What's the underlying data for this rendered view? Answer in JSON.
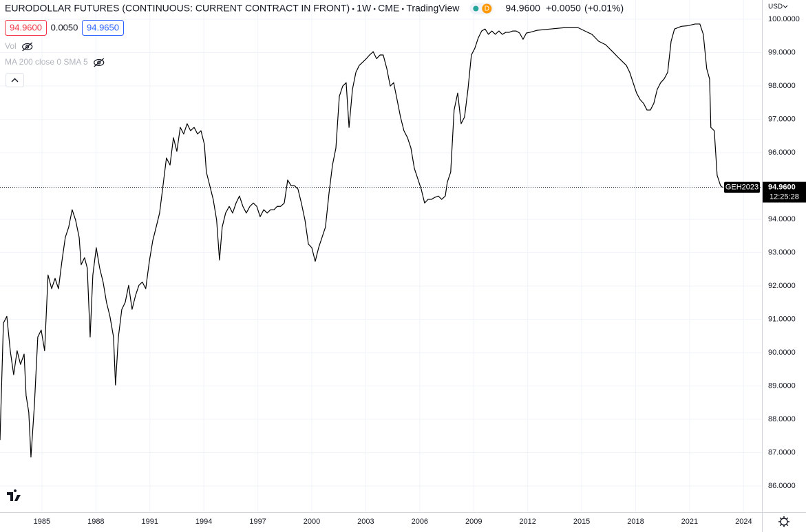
{
  "toolbar": {
    "title": "EURODOLLAR FUTURES (CONTINUOUS: CURRENT CONTRACT IN FRONT)",
    "interval": "1W",
    "exchange": "CME",
    "source": "TradingView",
    "badge": "D",
    "last": "94.9600",
    "change": "+0.0050",
    "change_pct": "(+0.01%)",
    "sell": "94.9600",
    "spread": "0.0050",
    "buy": "94.9650",
    "indicators": [
      "Vol",
      "MA 200 close 0 SMA 5"
    ],
    "currency": "USD"
  },
  "chart_data": {
    "type": "line",
    "color": "#000000",
    "x": [
      1982.67,
      1982.86,
      1983.05,
      1983.24,
      1983.43,
      1983.62,
      1983.81,
      1984.01,
      1984.12,
      1984.27,
      1984.39,
      1984.58,
      1984.77,
      1984.96,
      1985.15,
      1985.34,
      1985.54,
      1985.73,
      1985.92,
      1986.11,
      1986.3,
      1986.49,
      1986.68,
      1986.87,
      1987.07,
      1987.18,
      1987.37,
      1987.52,
      1987.68,
      1987.83,
      1988.02,
      1988.21,
      1988.4,
      1988.59,
      1988.78,
      1988.98,
      1989.09,
      1989.25,
      1989.44,
      1989.63,
      1989.82,
      1990.01,
      1990.2,
      1990.39,
      1990.58,
      1990.77,
      1990.97,
      1991.16,
      1991.35,
      1991.54,
      1991.73,
      1991.92,
      1992.12,
      1992.31,
      1992.5,
      1992.69,
      1992.88,
      1993.07,
      1993.26,
      1993.46,
      1993.65,
      1993.84,
      1994.03,
      1994.14,
      1994.33,
      1994.52,
      1994.71,
      1994.87,
      1995.02,
      1995.21,
      1995.41,
      1995.6,
      1995.79,
      1995.98,
      1996.17,
      1996.36,
      1996.56,
      1996.75,
      1996.94,
      1997.13,
      1997.33,
      1997.52,
      1997.71,
      1997.9,
      1998.08,
      1998.27,
      1998.47,
      1998.66,
      1998.85,
      1999.04,
      1999.23,
      1999.42,
      1999.62,
      1999.81,
      2000.0,
      2000.19,
      2000.38,
      2000.57,
      2000.76,
      2000.96,
      2001.15,
      2001.34,
      2001.53,
      2001.72,
      2001.91,
      2002.07,
      2002.26,
      2002.45,
      2002.64,
      2002.84,
      2003.03,
      2003.21,
      2003.41,
      2003.6,
      2003.79,
      2003.97,
      2004.17,
      2004.36,
      2004.55,
      2004.74,
      2004.93,
      2005.12,
      2005.32,
      2005.51,
      2005.7,
      2005.89,
      2006.08,
      2006.27,
      2006.46,
      2006.65,
      2006.84,
      2007.03,
      2007.22,
      2007.42,
      2007.53,
      2007.72,
      2007.91,
      2008.11,
      2008.3,
      2008.49,
      2008.68,
      2008.87,
      2009.06,
      2009.25,
      2009.44,
      2009.63,
      2009.82,
      2010.01,
      2010.2,
      2010.4,
      2010.59,
      2010.78,
      2010.97,
      2011.17,
      2011.36,
      2011.55,
      2011.74,
      2011.93,
      2012.12,
      2012.51,
      2013.27,
      2014.04,
      2014.8,
      2015.18,
      2015.57,
      2015.95,
      2016.33,
      2016.72,
      2017.1,
      2017.48,
      2017.67,
      2017.86,
      2018.05,
      2018.25,
      2018.44,
      2018.63,
      2018.82,
      2019.01,
      2019.2,
      2019.39,
      2019.58,
      2019.78,
      2019.97,
      2020.16,
      2020.54,
      2020.92,
      2021.3,
      2021.57,
      2021.76,
      2021.95,
      2022.11,
      2022.18,
      2022.37,
      2022.53,
      2022.72,
      2022.83
    ],
    "values": [
      87.38,
      90.89,
      91.09,
      90.06,
      89.34,
      90.06,
      89.65,
      89.96,
      88.72,
      88.21,
      86.87,
      88.41,
      90.47,
      90.68,
      90.06,
      92.33,
      91.92,
      92.23,
      91.92,
      92.74,
      93.46,
      93.77,
      94.29,
      93.98,
      93.46,
      92.64,
      92.85,
      92.54,
      90.47,
      92.33,
      93.15,
      92.54,
      92.12,
      91.51,
      91.09,
      90.47,
      89.03,
      90.47,
      91.3,
      91.51,
      92.02,
      91.3,
      91.71,
      92.02,
      92.12,
      91.92,
      92.74,
      93.36,
      93.77,
      94.19,
      95.01,
      95.84,
      95.63,
      96.45,
      96.04,
      96.76,
      96.56,
      96.87,
      96.66,
      96.76,
      96.56,
      96.66,
      96.25,
      95.42,
      95.01,
      94.6,
      93.98,
      92.78,
      93.77,
      94.19,
      94.39,
      94.19,
      94.49,
      94.7,
      94.39,
      94.19,
      94.39,
      94.49,
      94.39,
      94.08,
      94.29,
      94.19,
      94.29,
      94.29,
      94.39,
      94.39,
      94.49,
      95.18,
      95.01,
      95.01,
      94.91,
      94.49,
      93.98,
      93.26,
      93.15,
      92.74,
      93.15,
      93.46,
      93.77,
      94.8,
      95.63,
      96.14,
      97.69,
      98.0,
      98.1,
      96.76,
      97.9,
      98.41,
      98.62,
      98.72,
      98.82,
      98.93,
      99.03,
      98.82,
      98.93,
      98.93,
      98.52,
      98.0,
      98.1,
      97.59,
      97.07,
      96.66,
      96.45,
      96.14,
      95.53,
      95.22,
      94.91,
      94.49,
      94.6,
      94.6,
      94.66,
      94.7,
      94.6,
      94.7,
      95.11,
      95.42,
      97.28,
      97.79,
      96.87,
      97.07,
      97.9,
      98.93,
      99.13,
      99.44,
      99.65,
      99.71,
      99.55,
      99.65,
      99.55,
      99.65,
      99.55,
      99.61,
      99.61,
      99.65,
      99.65,
      99.59,
      99.4,
      99.59,
      99.61,
      99.67,
      99.71,
      99.75,
      99.75,
      99.65,
      99.55,
      99.34,
      99.24,
      99.03,
      98.82,
      98.62,
      98.41,
      98.1,
      97.79,
      97.59,
      97.48,
      97.28,
      97.28,
      97.48,
      97.9,
      98.1,
      98.21,
      98.41,
      99.34,
      99.71,
      99.79,
      99.81,
      99.86,
      99.86,
      99.55,
      98.52,
      98.21,
      96.76,
      96.66,
      95.32,
      95.01,
      94.96
    ],
    "xlim": [
      1982.67,
      2025.02
    ],
    "ylim": [
      85.22,
      100.58
    ],
    "xticks": [
      1985,
      1988,
      1991,
      1994,
      1997,
      2000,
      2003,
      2006,
      2009,
      2012,
      2015,
      2018,
      2021,
      2024
    ],
    "yticks": [
      {
        "value": 86,
        "label": "86.0000"
      },
      {
        "value": 87,
        "label": "87.0000"
      },
      {
        "value": 88,
        "label": "88.0000"
      },
      {
        "value": 89,
        "label": "89.0000"
      },
      {
        "value": 90,
        "label": "90.0000"
      },
      {
        "value": 91,
        "label": "91.0000"
      },
      {
        "value": 92,
        "label": "92.0000"
      },
      {
        "value": 93,
        "label": "93.0000"
      },
      {
        "value": 94,
        "label": "94.0000"
      },
      {
        "value": 95,
        "label": "95.0000"
      },
      {
        "value": 96,
        "label": "96.0000"
      },
      {
        "value": 97,
        "label": "97.0000"
      },
      {
        "value": 98,
        "label": "98.0000"
      },
      {
        "value": 99,
        "label": "99.0000"
      },
      {
        "value": 100,
        "label": "100.0000"
      }
    ],
    "grid": true,
    "price_line": {
      "value": 94.96,
      "label": "94.9600",
      "symbol": "GEH2023",
      "countdown": "12:25:28"
    }
  }
}
